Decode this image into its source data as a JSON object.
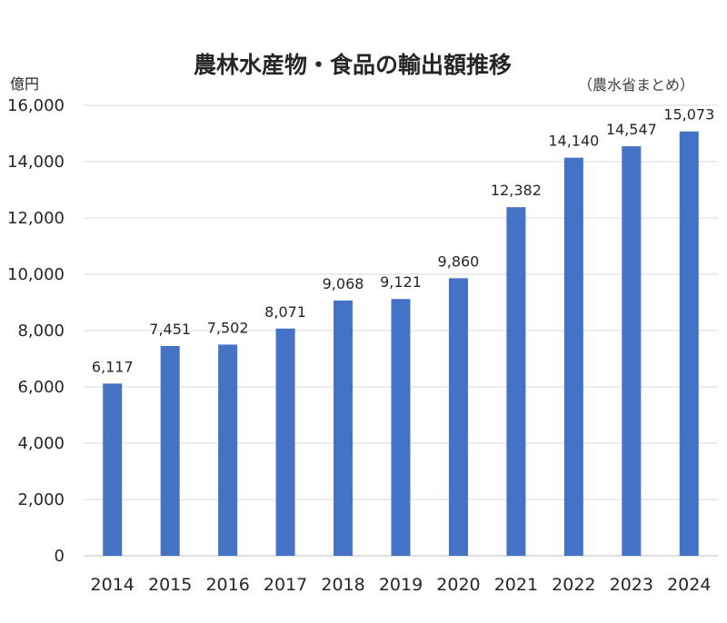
{
  "chart_data": {
    "type": "bar",
    "title": "農林水産物・食品の輸出額推移",
    "source_note": "（農水省まとめ）",
    "ylabel": "億円",
    "xlabel": "",
    "categories": [
      "2014",
      "2015",
      "2016",
      "2017",
      "2018",
      "2019",
      "2020",
      "2021",
      "2022",
      "2023",
      "2024"
    ],
    "values": [
      6117,
      7451,
      7502,
      8071,
      9068,
      9121,
      9860,
      12382,
      14140,
      14547,
      15073
    ],
    "value_labels": [
      "6,117",
      "7,451",
      "7,502",
      "8,071",
      "9,068",
      "9,121",
      "9,860",
      "12,382",
      "14,140",
      "14,547",
      "15,073"
    ],
    "ylim": [
      0,
      16000
    ],
    "yticks": [
      0,
      2000,
      4000,
      6000,
      8000,
      10000,
      12000,
      14000,
      16000
    ],
    "ytick_labels": [
      "0",
      "2,000",
      "4,000",
      "6,000",
      "8,000",
      "10,000",
      "12,000",
      "14,000",
      "16,000"
    ],
    "grid": true,
    "bar_color": "#4472c4",
    "legend": "none"
  }
}
